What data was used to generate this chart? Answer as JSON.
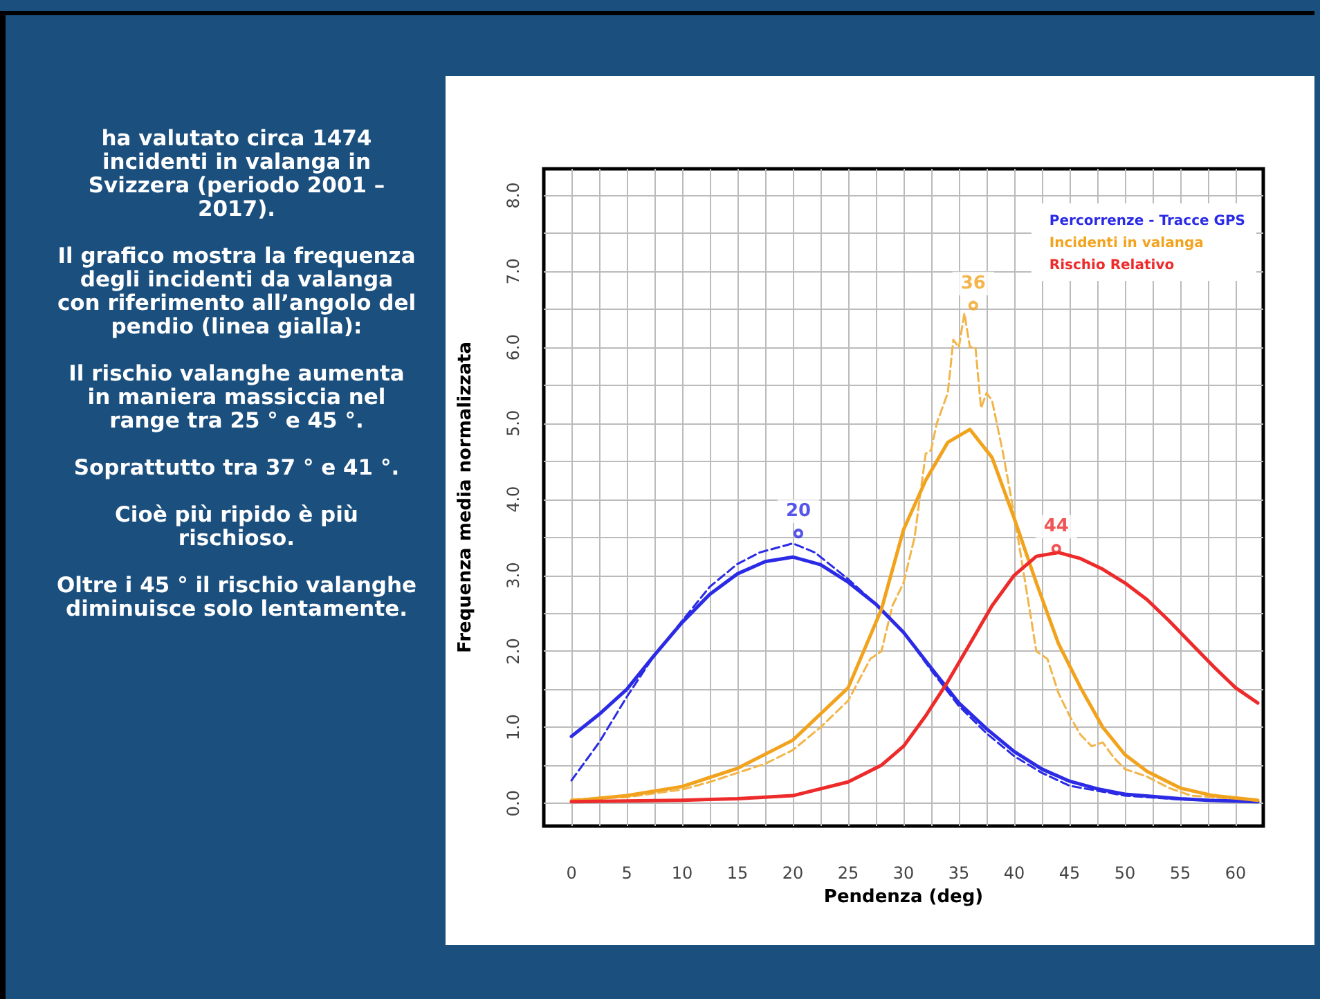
{
  "chart_data": {
    "type": "line",
    "xlabel": "Pendenza (deg)",
    "ylabel": "Frequenza media normalizzata",
    "xlim": [
      -2.5,
      62.5
    ],
    "ylim": [
      -0.3,
      8.35
    ],
    "xticks": [
      0,
      {
        "value": 2.5,
        "label": null
      },
      5,
      {
        "value": 7.5,
        "label": null
      },
      10,
      {
        "value": 12.5,
        "label": null
      },
      15,
      {
        "value": 17.5,
        "label": null
      },
      20,
      {
        "value": 22.5,
        "label": null
      },
      25,
      {
        "value": 27.5,
        "label": null
      },
      30,
      {
        "value": 32.5,
        "label": null
      },
      35,
      {
        "value": 37.5,
        "label": null
      },
      40,
      {
        "value": 42.5,
        "label": null
      },
      45,
      {
        "value": 47.5,
        "label": null
      },
      50,
      {
        "value": 52.5,
        "label": null
      },
      55,
      {
        "value": 57.5,
        "label": null
      },
      60
    ],
    "yticks": [
      {
        "value": 0,
        "label": "0.0"
      },
      {
        "value": 0.5,
        "label": null
      },
      {
        "value": 1,
        "label": "1.0"
      },
      {
        "value": 1.5,
        "label": null
      },
      {
        "value": 2,
        "label": "2.0"
      },
      {
        "value": 2.5,
        "label": null
      },
      {
        "value": 3,
        "label": "3.0"
      },
      {
        "value": 3.5,
        "label": null
      },
      {
        "value": 4,
        "label": "4.0"
      },
      {
        "value": 4.5,
        "label": null
      },
      {
        "value": 5,
        "label": "5.0"
      },
      {
        "value": 5.5,
        "label": null
      },
      {
        "value": 6,
        "label": "6.0"
      },
      {
        "value": 6.5,
        "label": null
      },
      {
        "value": 7,
        "label": "7.0"
      },
      {
        "value": 7.5,
        "label": null
      },
      {
        "value": 8,
        "label": "8.0"
      }
    ],
    "grid": true,
    "legend": "top right",
    "marker": "none",
    "series": [
      {
        "name": "Percorrenze - Tracce GPS",
        "color": "#2b2be6",
        "line_style": "solid",
        "x": [
          0,
          2.5,
          5,
          7.5,
          10,
          12.5,
          15,
          17.5,
          20,
          22.5,
          25,
          27.5,
          30,
          32.5,
          35,
          37.5,
          40,
          42.5,
          45,
          47.5,
          50,
          52.5,
          55,
          57.5,
          62
        ],
        "values": [
          0.88,
          1.17,
          1.5,
          1.95,
          2.38,
          2.75,
          3.02,
          3.18,
          3.24,
          3.14,
          2.91,
          2.62,
          2.25,
          1.78,
          1.32,
          0.98,
          0.68,
          0.45,
          0.29,
          0.19,
          0.12,
          0.09,
          0.06,
          0.04,
          0.02
        ]
      },
      {
        "color": "#2b2be6",
        "line_style": "dashed",
        "x": [
          0,
          2.5,
          5,
          7.5,
          10,
          12.5,
          15,
          17,
          20,
          22,
          25,
          27.5,
          30,
          32.5,
          35,
          37.5,
          40,
          42.5,
          45,
          50,
          55,
          62
        ],
        "values": [
          0.3,
          0.8,
          1.4,
          1.95,
          2.4,
          2.85,
          3.15,
          3.3,
          3.42,
          3.3,
          2.95,
          2.62,
          2.25,
          1.75,
          1.28,
          0.92,
          0.62,
          0.4,
          0.23,
          0.1,
          0.05,
          0.02
        ]
      },
      {
        "name": "Incidenti in valanga",
        "color": "#f2a31e",
        "line_style": "solid",
        "x": [
          0,
          5,
          10,
          15,
          20,
          25,
          28,
          30,
          32,
          34,
          36,
          38,
          40,
          42,
          44,
          46,
          48,
          50,
          52,
          55,
          58,
          62
        ],
        "values": [
          0.03,
          0.1,
          0.22,
          0.46,
          0.83,
          1.52,
          2.55,
          3.6,
          4.25,
          4.75,
          4.92,
          4.55,
          3.75,
          2.9,
          2.1,
          1.52,
          1.0,
          0.64,
          0.42,
          0.2,
          0.1,
          0.04
        ]
      },
      {
        "color": "#f2b54a",
        "line_style": "dashed",
        "x": [
          0,
          5,
          10,
          12.5,
          15,
          17.5,
          20,
          22.5,
          25,
          27,
          28,
          29,
          30,
          31,
          32,
          32.5,
          33,
          34,
          34.5,
          35,
          35.5,
          36,
          36.5,
          37,
          37.5,
          38,
          39,
          40,
          41,
          42,
          43,
          44,
          45,
          46,
          47,
          48,
          49,
          50,
          52,
          54,
          56,
          58,
          62
        ],
        "values": [
          0.05,
          0.08,
          0.18,
          0.28,
          0.4,
          0.52,
          0.7,
          1.0,
          1.35,
          1.9,
          2.0,
          2.6,
          2.9,
          3.5,
          4.6,
          4.65,
          5.0,
          5.4,
          6.1,
          6.0,
          6.45,
          6.0,
          6.0,
          5.2,
          5.4,
          5.3,
          4.6,
          3.8,
          2.9,
          2.0,
          1.9,
          1.45,
          1.15,
          0.9,
          0.75,
          0.8,
          0.6,
          0.45,
          0.35,
          0.2,
          0.1,
          0.08,
          0.03
        ]
      },
      {
        "name": "Rischio Relativo",
        "color": "#ee2b2b",
        "line_style": "solid",
        "x": [
          0,
          10,
          15,
          20,
          25,
          28,
          30,
          32,
          34,
          36,
          38,
          40,
          42,
          44,
          46,
          48,
          50,
          52,
          54,
          56,
          58,
          60,
          62
        ],
        "values": [
          0.02,
          0.04,
          0.06,
          0.1,
          0.28,
          0.5,
          0.75,
          1.15,
          1.6,
          2.1,
          2.6,
          3.0,
          3.25,
          3.3,
          3.22,
          3.08,
          2.9,
          2.68,
          2.4,
          2.1,
          1.8,
          1.52,
          1.32
        ]
      }
    ],
    "annotations": [
      {
        "text": "20",
        "x": 20.5,
        "y": 3.55
      },
      {
        "text": "36",
        "x": 36.3,
        "y": 6.55
      },
      {
        "text": "44",
        "x": 43.8,
        "y": 3.35
      },
      "ha valutato circa 1474 incidenti in valanga in Svizzera (periodo 2001 – 2017).",
      "Il grafico mostra la frequenza degli incidenti da valanga con riferimento all’angolo del pendio (linea gialla):",
      "Il rischio valanghe aumenta in maniera massiccia nel range tra 25 ° e 45 °.",
      "Soprattutto tra 37 ° e 41 °.",
      "Cioè più ripido è più rischioso.",
      "Oltre i 45 ° il rischio valanghe diminuisce solo lentamente."
    ]
  }
}
